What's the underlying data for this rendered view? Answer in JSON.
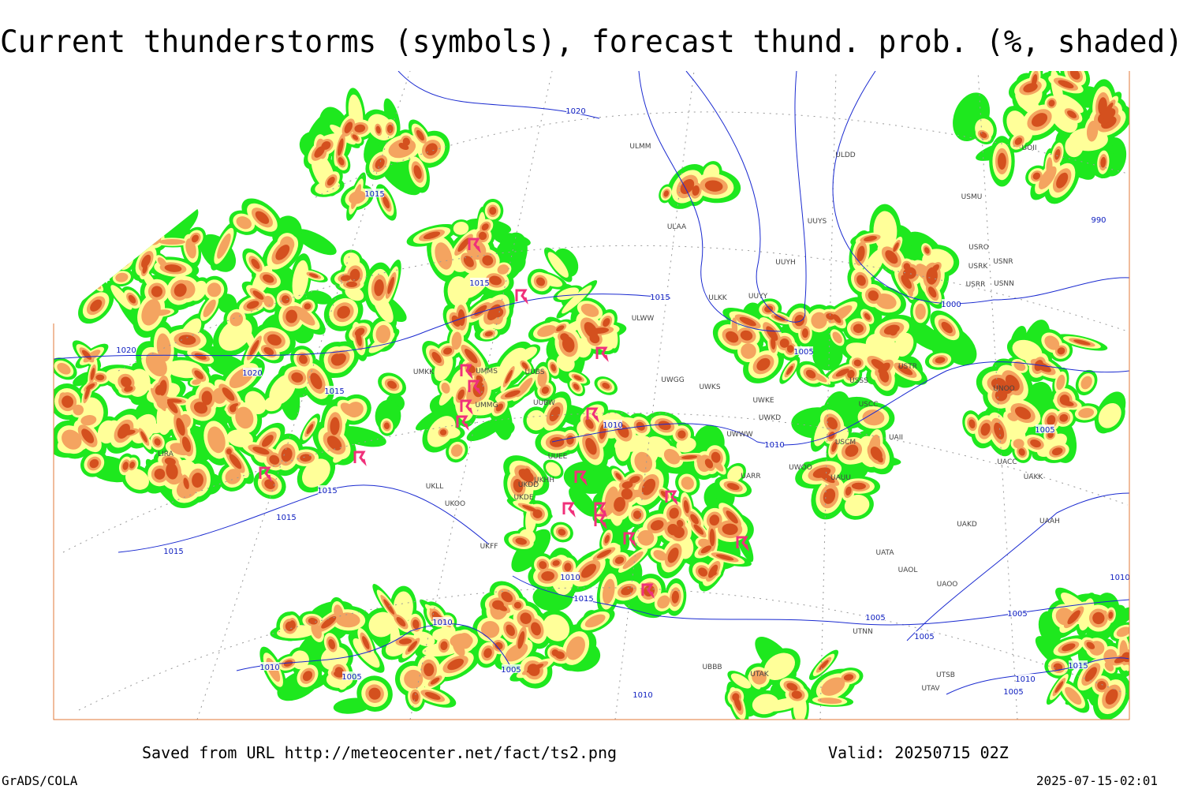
{
  "title": "Current thunderstorms (symbols), forecast thund. prob. (%, shaded)",
  "footer": {
    "source": "Saved from URL http://meteocenter.net/fact/ts2.png",
    "valid": "Valid: 20250715 02Z",
    "software": "GrADS/COLA",
    "timestamp": "2025-07-15-02:01"
  },
  "isobar_labels": [
    "1020",
    "1015",
    "1015",
    "1015",
    "1020",
    "1020",
    "1015",
    "1010",
    "1010",
    "1005",
    "1000",
    "990",
    "1005",
    "1015",
    "1015",
    "1015",
    "1010",
    "1015",
    "1010",
    "1005",
    "1005",
    "1010",
    "1005",
    "1005",
    "1010",
    "1010",
    "1005",
    "1015",
    "1010",
    "1005"
  ],
  "station_labels": [
    "ULMM",
    "ULDD",
    "UOII",
    "USMU",
    "UUYS",
    "ULAA",
    "USRO",
    "USRK",
    "USNR",
    "UUYH",
    "USRR",
    "USNN",
    "ULKK",
    "UUYY",
    "ULWW",
    "UWGG",
    "UWKS",
    "USSS",
    "USTR",
    "UNOO",
    "UWKE",
    "USCC",
    "UACC",
    "UAKK",
    "UWWW",
    "UWKD",
    "UAII",
    "USCM",
    "UWOO",
    "UAUU",
    "UARR",
    "UAKD",
    "UAAH",
    "UATA",
    "UAOL",
    "UAOO",
    "UTNN",
    "UTAK",
    "UTSB",
    "UTAV",
    "UBBB",
    "UMMS",
    "UMKK",
    "UUBS",
    "UMMG",
    "UUBW",
    "UUEE",
    "UKHH",
    "UKDD",
    "UKDE",
    "UKOO",
    "UKLL",
    "UKFF",
    "LIRA"
  ]
}
